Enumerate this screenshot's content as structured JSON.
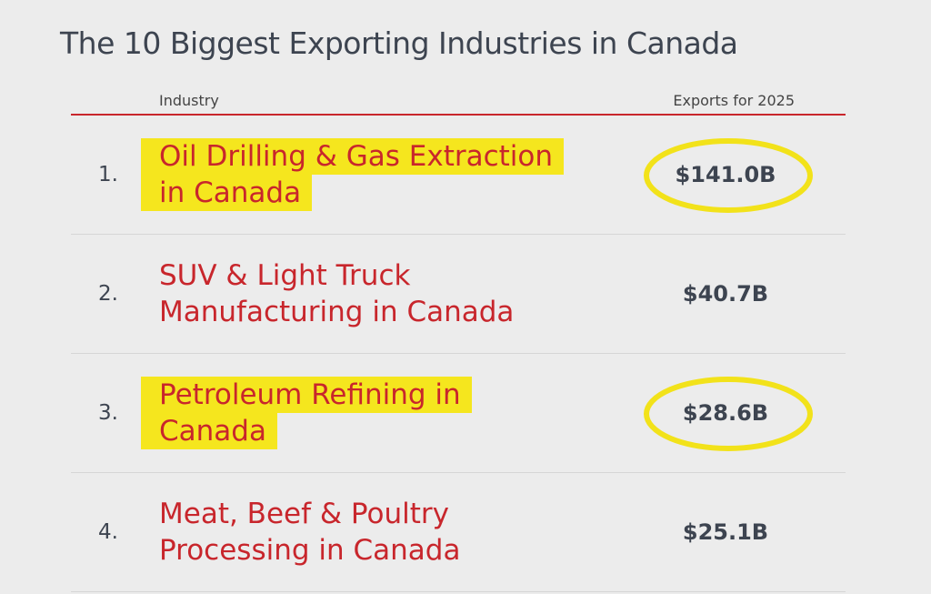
{
  "title": "The 10 Biggest Exporting Industries in Canada",
  "table": {
    "headers": [
      "Industry",
      "Exports for 2025"
    ],
    "rows": [
      {
        "rank": "1.",
        "industry": [
          "Oil Drilling & Gas Extraction",
          "in Canada"
        ],
        "exports": "$141.0B",
        "highlighted": true
      },
      {
        "rank": "2.",
        "industry": [
          "SUV & Light Truck",
          "Manufacturing in Canada"
        ],
        "exports": "$40.7B",
        "highlighted": false
      },
      {
        "rank": "3.",
        "industry": [
          "Petroleum Refining in",
          "Canada"
        ],
        "exports": "$28.6B",
        "highlighted": true
      },
      {
        "rank": "4.",
        "industry": [
          "Meat, Beef & Poultry",
          "Processing in Canada"
        ],
        "exports": "$25.1B",
        "highlighted": false
      }
    ]
  }
}
